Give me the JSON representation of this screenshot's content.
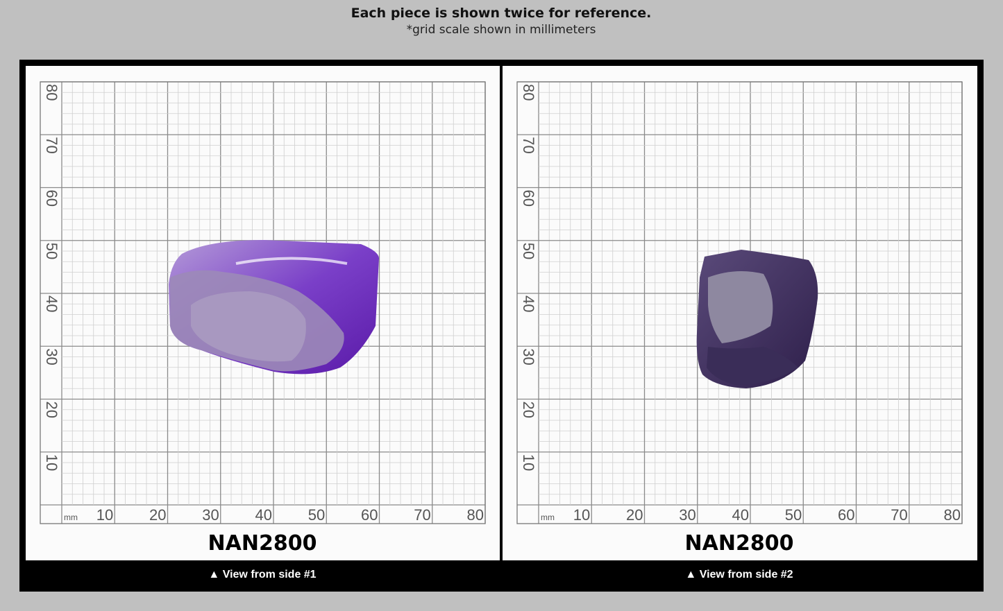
{
  "header": {
    "title": "Each piece is shown twice for reference.",
    "subtitle": "*grid scale shown in millimeters"
  },
  "grid": {
    "unit": "mm",
    "ticks": [
      "10",
      "20",
      "30",
      "40",
      "50",
      "60",
      "70",
      "80"
    ]
  },
  "panels": [
    {
      "label": "NAN2800",
      "caption": "▲ View from side #1"
    },
    {
      "label": "NAN2800",
      "caption": "▲ View from side #2"
    }
  ]
}
